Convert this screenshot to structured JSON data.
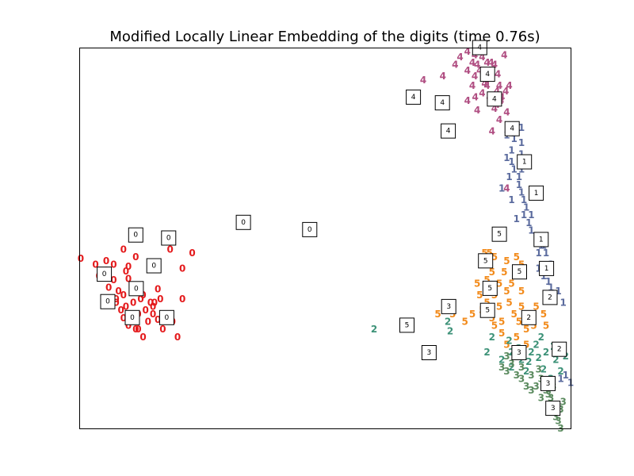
{
  "chart_data": {
    "type": "scatter",
    "title": "Modified Locally Linear Embedding of the digits (time 0.76s)",
    "xlabel": "",
    "ylabel": "",
    "xlim": [
      0,
      1
    ],
    "ylim": [
      0,
      1
    ],
    "axis_ticks": "none",
    "grid": false,
    "classes": [
      {
        "label": "0",
        "color": "#e41a1c"
      },
      {
        "label": "1",
        "color": "#5b6b9e"
      },
      {
        "label": "2",
        "color": "#3d9278"
      },
      {
        "label": "3",
        "color": "#5a8a5e"
      },
      {
        "label": "4",
        "color": "#b04e82"
      },
      {
        "label": "5",
        "color": "#f28a1a"
      }
    ],
    "points": [
      [
        "0",
        0.003,
        0.446
      ],
      [
        "0",
        0.033,
        0.43
      ],
      [
        "0",
        0.055,
        0.415
      ],
      [
        "0",
        0.07,
        0.39
      ],
      [
        "0",
        0.095,
        0.412
      ],
      [
        "0",
        0.1,
        0.393
      ],
      [
        "0",
        0.117,
        0.362
      ],
      [
        "0",
        0.16,
        0.366
      ],
      [
        "0",
        0.153,
        0.33
      ],
      [
        "0",
        0.075,
        0.34
      ],
      [
        "0",
        0.085,
        0.31
      ],
      [
        "0",
        0.1,
        0.3
      ],
      [
        "0",
        0.12,
        0.3
      ],
      [
        "0",
        0.14,
        0.28
      ],
      [
        "0",
        0.12,
        0.26
      ],
      [
        "0",
        0.17,
        0.26
      ],
      [
        "0",
        0.18,
        0.3
      ],
      [
        "0",
        0.21,
        0.34
      ],
      [
        "0",
        0.21,
        0.42
      ],
      [
        "0",
        0.23,
        0.46
      ],
      [
        "0",
        0.185,
        0.47
      ],
      [
        "0",
        0.11,
        0.5
      ],
      [
        "0",
        0.09,
        0.47
      ],
      [
        "0",
        0.055,
        0.44
      ],
      [
        "0",
        0.04,
        0.4
      ],
      [
        "0",
        0.06,
        0.37
      ],
      [
        "0",
        0.09,
        0.35
      ],
      [
        "0",
        0.075,
        0.33
      ],
      [
        "0",
        0.095,
        0.32
      ],
      [
        "0",
        0.11,
        0.33
      ],
      [
        "0",
        0.13,
        0.35
      ],
      [
        "0",
        0.145,
        0.33
      ],
      [
        "0",
        0.15,
        0.3
      ],
      [
        "0",
        0.105,
        0.28
      ],
      [
        "0",
        0.115,
        0.26
      ],
      [
        "0",
        0.2,
        0.24
      ],
      [
        "0",
        0.19,
        0.28
      ],
      [
        "0",
        0.08,
        0.36
      ],
      [
        "0",
        0.15,
        0.32
      ],
      [
        "0",
        0.16,
        0.285
      ],
      [
        "0",
        0.07,
        0.43
      ],
      [
        "0",
        0.1,
        0.425
      ],
      [
        "0",
        0.125,
        0.34
      ],
      [
        "0",
        0.135,
        0.31
      ],
      [
        "0",
        0.09,
        0.29
      ],
      [
        "0",
        0.13,
        0.24
      ],
      [
        "0",
        0.1,
        0.27
      ],
      [
        "0",
        0.17,
        0.3
      ],
      [
        "0",
        0.165,
        0.34
      ],
      [
        "0",
        0.115,
        0.45
      ],
      [
        "4",
        0.81,
        1.0
      ],
      [
        "4",
        0.805,
        0.98
      ],
      [
        "4",
        0.82,
        0.975
      ],
      [
        "4",
        0.83,
        0.96
      ],
      [
        "4",
        0.845,
        0.955
      ],
      [
        "4",
        0.81,
        0.955
      ],
      [
        "4",
        0.815,
        0.94
      ],
      [
        "4",
        0.835,
        0.94
      ],
      [
        "4",
        0.805,
        0.925
      ],
      [
        "4",
        0.84,
        0.92
      ],
      [
        "4",
        0.855,
        0.9
      ],
      [
        "4",
        0.83,
        0.9
      ],
      [
        "4",
        0.85,
        0.885
      ],
      [
        "4",
        0.86,
        0.87
      ],
      [
        "4",
        0.835,
        0.87
      ],
      [
        "4",
        0.85,
        0.85
      ],
      [
        "4",
        0.87,
        0.83
      ],
      [
        "4",
        0.775,
        0.975
      ],
      [
        "4",
        0.79,
        0.99
      ],
      [
        "4",
        0.765,
        0.955
      ],
      [
        "4",
        0.74,
        0.925
      ],
      [
        "4",
        0.7,
        0.915
      ],
      [
        "4",
        0.8,
        0.9
      ],
      [
        "4",
        0.79,
        0.86
      ],
      [
        "4",
        0.81,
        0.835
      ],
      [
        "4",
        0.84,
        0.78
      ],
      [
        "4",
        0.855,
        0.81
      ],
      [
        "4",
        0.87,
        0.63
      ],
      [
        "4",
        0.865,
        0.98
      ],
      [
        "4",
        0.79,
        0.94
      ],
      [
        "4",
        0.8,
        0.96
      ],
      [
        "4",
        0.825,
        0.905
      ],
      [
        "4",
        0.845,
        0.84
      ],
      [
        "4",
        0.858,
        0.86
      ],
      [
        "4",
        0.875,
        0.9
      ],
      [
        "4",
        0.82,
        0.88
      ],
      [
        "4",
        0.838,
        0.96
      ],
      [
        "4",
        0.852,
        0.93
      ],
      [
        "4",
        0.868,
        0.885
      ],
      [
        "4",
        0.806,
        0.87
      ],
      [
        "1",
        0.87,
        0.77
      ],
      [
        "1",
        0.885,
        0.76
      ],
      [
        "1",
        0.9,
        0.75
      ],
      [
        "1",
        0.88,
        0.73
      ],
      [
        "1",
        0.9,
        0.72
      ],
      [
        "1",
        0.88,
        0.7
      ],
      [
        "1",
        0.885,
        0.68
      ],
      [
        "1",
        0.875,
        0.66
      ],
      [
        "1",
        0.895,
        0.64
      ],
      [
        "1",
        0.9,
        0.62
      ],
      [
        "1",
        0.905,
        0.6
      ],
      [
        "1",
        0.91,
        0.58
      ],
      [
        "1",
        0.905,
        0.56
      ],
      [
        "1",
        0.915,
        0.54
      ],
      [
        "1",
        0.92,
        0.52
      ],
      [
        "1",
        0.93,
        0.5
      ],
      [
        "1",
        0.94,
        0.48
      ],
      [
        "1",
        0.95,
        0.46
      ],
      [
        "1",
        0.935,
        0.42
      ],
      [
        "1",
        0.945,
        0.4
      ],
      [
        "1",
        0.955,
        0.385
      ],
      [
        "1",
        0.96,
        0.37
      ],
      [
        "1",
        0.975,
        0.36
      ],
      [
        "1",
        0.985,
        0.33
      ],
      [
        "1",
        0.97,
        0.2
      ],
      [
        "1",
        0.99,
        0.14
      ],
      [
        "1",
        1.0,
        0.12
      ],
      [
        "1",
        0.98,
        0.13
      ],
      [
        "1",
        0.9,
        0.79
      ],
      [
        "1",
        0.87,
        0.71
      ],
      [
        "1",
        0.86,
        0.63
      ],
      [
        "1",
        0.895,
        0.66
      ],
      [
        "1",
        0.88,
        0.6
      ],
      [
        "1",
        0.905,
        0.7
      ],
      [
        "1",
        0.92,
        0.56
      ],
      [
        "1",
        0.935,
        0.46
      ],
      [
        "1",
        0.96,
        0.43
      ],
      [
        "1",
        0.945,
        0.48
      ],
      [
        "1",
        0.9,
        0.68
      ],
      [
        "1",
        0.89,
        0.55
      ],
      [
        "5",
        0.835,
        0.46
      ],
      [
        "5",
        0.845,
        0.45
      ],
      [
        "5",
        0.87,
        0.44
      ],
      [
        "5",
        0.89,
        0.45
      ],
      [
        "5",
        0.9,
        0.43
      ],
      [
        "5",
        0.865,
        0.41
      ],
      [
        "5",
        0.84,
        0.41
      ],
      [
        "5",
        0.83,
        0.39
      ],
      [
        "5",
        0.855,
        0.38
      ],
      [
        "5",
        0.87,
        0.36
      ],
      [
        "5",
        0.845,
        0.35
      ],
      [
        "5",
        0.83,
        0.33
      ],
      [
        "5",
        0.855,
        0.32
      ],
      [
        "5",
        0.82,
        0.31
      ],
      [
        "5",
        0.84,
        0.29
      ],
      [
        "5",
        0.86,
        0.28
      ],
      [
        "5",
        0.885,
        0.3
      ],
      [
        "5",
        0.9,
        0.32
      ],
      [
        "5",
        0.915,
        0.3
      ],
      [
        "5",
        0.93,
        0.32
      ],
      [
        "5",
        0.945,
        0.3
      ],
      [
        "5",
        0.95,
        0.27
      ],
      [
        "5",
        0.91,
        0.26
      ],
      [
        "5",
        0.89,
        0.24
      ],
      [
        "5",
        0.87,
        0.22
      ],
      [
        "5",
        0.91,
        0.22
      ],
      [
        "5",
        0.8,
        0.3
      ],
      [
        "5",
        0.785,
        0.28
      ],
      [
        "5",
        0.76,
        0.3
      ],
      [
        "5",
        0.73,
        0.3
      ],
      [
        "5",
        0.81,
        0.38
      ],
      [
        "5",
        0.825,
        0.46
      ],
      [
        "5",
        0.88,
        0.38
      ],
      [
        "5",
        0.9,
        0.36
      ],
      [
        "5",
        0.875,
        0.33
      ],
      [
        "5",
        0.86,
        0.25
      ],
      [
        "5",
        0.925,
        0.27
      ],
      [
        "5",
        0.815,
        0.35
      ],
      [
        "5",
        0.845,
        0.27
      ],
      [
        "5",
        0.895,
        0.28
      ],
      [
        "2",
        0.75,
        0.28
      ],
      [
        "2",
        0.755,
        0.255
      ],
      [
        "2",
        0.84,
        0.24
      ],
      [
        "2",
        0.88,
        0.2
      ],
      [
        "2",
        0.9,
        0.18
      ],
      [
        "2",
        0.92,
        0.2
      ],
      [
        "2",
        0.93,
        0.22
      ],
      [
        "2",
        0.95,
        0.2
      ],
      [
        "2",
        0.97,
        0.18
      ],
      [
        "2",
        0.98,
        0.15
      ],
      [
        "2",
        0.96,
        0.13
      ],
      [
        "2",
        0.88,
        0.16
      ],
      [
        "2",
        0.86,
        0.18
      ],
      [
        "2",
        0.91,
        0.15
      ],
      [
        "2",
        0.94,
        0.24
      ],
      [
        "2",
        0.895,
        0.21
      ],
      [
        "2",
        0.875,
        0.23
      ],
      [
        "2",
        0.915,
        0.175
      ],
      [
        "2",
        0.945,
        0.155
      ],
      [
        "2",
        0.965,
        0.215
      ],
      [
        "2",
        0.6,
        0.26
      ],
      [
        "2",
        0.83,
        0.2
      ],
      [
        "2",
        0.99,
        0.19
      ],
      [
        "2",
        0.935,
        0.185
      ],
      [
        "2",
        0.905,
        0.195
      ],
      [
        "3",
        0.87,
        0.19
      ],
      [
        "3",
        0.88,
        0.17
      ],
      [
        "3",
        0.9,
        0.16
      ],
      [
        "3",
        0.92,
        0.14
      ],
      [
        "3",
        0.94,
        0.13
      ],
      [
        "3",
        0.93,
        0.11
      ],
      [
        "3",
        0.95,
        0.1
      ],
      [
        "3",
        0.96,
        0.08
      ],
      [
        "3",
        0.97,
        0.06
      ],
      [
        "3",
        0.98,
        0.05
      ],
      [
        "3",
        0.97,
        0.03
      ],
      [
        "3",
        0.98,
        0.0
      ],
      [
        "3",
        0.975,
        0.02
      ],
      [
        "3",
        0.87,
        0.15
      ],
      [
        "3",
        0.9,
        0.13
      ],
      [
        "3",
        0.92,
        0.1
      ],
      [
        "3",
        0.94,
        0.08
      ],
      [
        "3",
        0.86,
        0.16
      ],
      [
        "3",
        0.95,
        0.12
      ],
      [
        "3",
        0.91,
        0.11
      ],
      [
        "3",
        0.89,
        0.14
      ],
      [
        "3",
        0.935,
        0.155
      ],
      [
        "3",
        0.955,
        0.09
      ],
      [
        "3",
        0.965,
        0.11
      ],
      [
        "3",
        0.985,
        0.07
      ]
    ],
    "image_thumbnails": [
      {
        "label": "4",
        "x": 0.815,
        "y": 1.0
      },
      {
        "label": "4",
        "x": 0.831,
        "y": 0.93
      },
      {
        "label": "4",
        "x": 0.845,
        "y": 0.865
      },
      {
        "label": "4",
        "x": 0.68,
        "y": 0.87
      },
      {
        "label": "4",
        "x": 0.739,
        "y": 0.855
      },
      {
        "label": "4",
        "x": 0.751,
        "y": 0.781
      },
      {
        "label": "4",
        "x": 0.881,
        "y": 0.787
      },
      {
        "label": "1",
        "x": 0.906,
        "y": 0.7
      },
      {
        "label": "1",
        "x": 0.93,
        "y": 0.618
      },
      {
        "label": "1",
        "x": 0.94,
        "y": 0.496
      },
      {
        "label": "1",
        "x": 0.951,
        "y": 0.42
      },
      {
        "label": "5",
        "x": 0.855,
        "y": 0.51
      },
      {
        "label": "5",
        "x": 0.827,
        "y": 0.44
      },
      {
        "label": "5",
        "x": 0.896,
        "y": 0.411
      },
      {
        "label": "5",
        "x": 0.836,
        "y": 0.368
      },
      {
        "label": "5",
        "x": 0.831,
        "y": 0.31
      },
      {
        "label": "5",
        "x": 0.667,
        "y": 0.271
      },
      {
        "label": "2",
        "x": 0.958,
        "y": 0.344
      },
      {
        "label": "2",
        "x": 0.915,
        "y": 0.291
      },
      {
        "label": "2",
        "x": 0.977,
        "y": 0.208
      },
      {
        "label": "3",
        "x": 0.752,
        "y": 0.32
      },
      {
        "label": "3",
        "x": 0.712,
        "y": 0.199
      },
      {
        "label": "3",
        "x": 0.895,
        "y": 0.199
      },
      {
        "label": "3",
        "x": 0.954,
        "y": 0.118
      },
      {
        "label": "3",
        "x": 0.964,
        "y": 0.053
      },
      {
        "label": "0",
        "x": 0.334,
        "y": 0.541
      },
      {
        "label": "0",
        "x": 0.469,
        "y": 0.522
      },
      {
        "label": "0",
        "x": 0.115,
        "y": 0.508
      },
      {
        "label": "0",
        "x": 0.182,
        "y": 0.5
      },
      {
        "label": "0",
        "x": 0.152,
        "y": 0.427
      },
      {
        "label": "0",
        "x": 0.051,
        "y": 0.405
      },
      {
        "label": "0",
        "x": 0.116,
        "y": 0.367
      },
      {
        "label": "0",
        "x": 0.058,
        "y": 0.333
      },
      {
        "label": "0",
        "x": 0.108,
        "y": 0.291
      },
      {
        "label": "0",
        "x": 0.178,
        "y": 0.291
      }
    ]
  }
}
